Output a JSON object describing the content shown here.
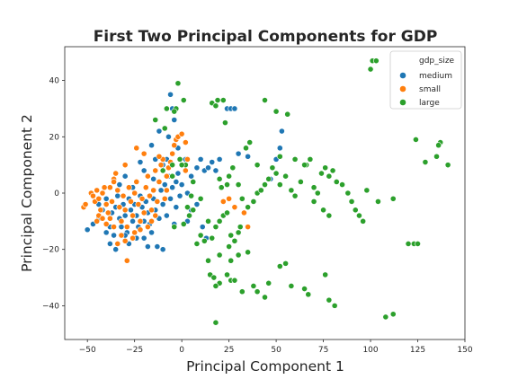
{
  "chart_data": {
    "type": "scatter",
    "title": "First Two Principal Components for GDP",
    "xlabel": "Principal Component 1",
    "ylabel": "Principal Component 2",
    "xlim": [
      -62,
      150
    ],
    "ylim": [
      -52,
      52
    ],
    "xticks": [
      -50,
      -25,
      0,
      25,
      50,
      75,
      100,
      125,
      150
    ],
    "yticks": [
      -40,
      -20,
      0,
      20,
      40
    ],
    "grid": false,
    "legend": {
      "title": "gdp_size",
      "placement": "top-right"
    },
    "series": [
      {
        "name": "medium",
        "color": "#1f77b4",
        "points": [
          [
            -50,
            -13
          ],
          [
            -47,
            -11
          ],
          [
            -44,
            -9
          ],
          [
            -42,
            -6
          ],
          [
            -40,
            -2
          ],
          [
            -38,
            -12
          ],
          [
            -37,
            -7
          ],
          [
            -36,
            -15
          ],
          [
            -35,
            -5
          ],
          [
            -34,
            -1
          ],
          [
            -33,
            -9
          ],
          [
            -32,
            -12
          ],
          [
            -31,
            -4
          ],
          [
            -30,
            -8
          ],
          [
            -29,
            -14
          ],
          [
            -28,
            -2
          ],
          [
            -27,
            -6
          ],
          [
            -26,
            -10
          ],
          [
            -25,
            -4
          ],
          [
            -24,
            -8
          ],
          [
            -23,
            -12
          ],
          [
            -22,
            -1
          ],
          [
            -21,
            -5
          ],
          [
            -20,
            -10
          ],
          [
            -20,
            -16
          ],
          [
            -19,
            -3
          ],
          [
            -18,
            -7
          ],
          [
            -17,
            -11
          ],
          [
            -16,
            -14
          ],
          [
            -15,
            -2
          ],
          [
            -14,
            -6
          ],
          [
            -13,
            -19
          ],
          [
            -12,
            -9
          ],
          [
            -11,
            1
          ],
          [
            -10,
            -4
          ],
          [
            -10,
            -20
          ],
          [
            -9,
            3
          ],
          [
            -8,
            -8
          ],
          [
            -7,
            6
          ],
          [
            -6,
            -2
          ],
          [
            -5,
            2
          ],
          [
            -4,
            -11
          ],
          [
            -3,
            4
          ],
          [
            -2,
            7
          ],
          [
            -1,
            -1
          ],
          [
            0,
            3
          ],
          [
            -6,
            35
          ],
          [
            -5,
            30
          ],
          [
            -4,
            26
          ],
          [
            -7,
            20
          ],
          [
            -2,
            16
          ],
          [
            -12,
            22
          ],
          [
            -16,
            17
          ],
          [
            -10,
            10
          ],
          [
            -8,
            12
          ],
          [
            -14,
            12
          ],
          [
            -20,
            8
          ],
          [
            -30,
            6
          ],
          [
            -26,
            2
          ],
          [
            -24,
            -16
          ],
          [
            -18,
            -19
          ],
          [
            -28,
            -18
          ],
          [
            -40,
            -14
          ],
          [
            -44,
            -4
          ],
          [
            -33,
            3
          ],
          [
            -35,
            -20
          ],
          [
            3,
            0
          ],
          [
            5,
            6
          ],
          [
            6,
            4
          ],
          [
            8,
            9
          ],
          [
            10,
            12
          ],
          [
            12,
            8
          ],
          [
            14,
            9
          ],
          [
            16,
            11
          ],
          [
            18,
            8
          ],
          [
            20,
            12
          ],
          [
            3,
            -10
          ],
          [
            5,
            -6
          ],
          [
            8,
            -4
          ],
          [
            11,
            -12
          ],
          [
            13,
            -16
          ],
          [
            24,
            30
          ],
          [
            26,
            30
          ],
          [
            28,
            30
          ],
          [
            30,
            14
          ],
          [
            35,
            13
          ],
          [
            40,
            10
          ],
          [
            47,
            5
          ],
          [
            50,
            12
          ],
          [
            52,
            16
          ],
          [
            53,
            22
          ],
          [
            2,
            12
          ],
          [
            -22,
            11
          ],
          [
            -15,
            5
          ],
          [
            -3,
            -5
          ],
          [
            -38,
            -18
          ],
          [
            -30,
            -15
          ]
        ]
      },
      {
        "name": "small",
        "color": "#ff7f0e",
        "points": [
          [
            -52,
            -5
          ],
          [
            -51,
            -4
          ],
          [
            -48,
            0
          ],
          [
            -47,
            -1
          ],
          [
            -46,
            -3
          ],
          [
            -45,
            1
          ],
          [
            -44,
            -2
          ],
          [
            -43,
            -6
          ],
          [
            -42,
            0
          ],
          [
            -41,
            2
          ],
          [
            -40,
            -4
          ],
          [
            -39,
            -7
          ],
          [
            -38,
            -9
          ],
          [
            -37,
            -3
          ],
          [
            -36,
            5
          ],
          [
            -35,
            7
          ],
          [
            -34,
            1
          ],
          [
            -33,
            -5
          ],
          [
            -32,
            -10
          ],
          [
            -31,
            -1
          ],
          [
            -30,
            -6
          ],
          [
            -29,
            -12
          ],
          [
            -28,
            2
          ],
          [
            -27,
            -3
          ],
          [
            -26,
            -8
          ],
          [
            -25,
            0
          ],
          [
            -24,
            4
          ],
          [
            -23,
            -4
          ],
          [
            -22,
            -13
          ],
          [
            -21,
            -2
          ],
          [
            -20,
            -7
          ],
          [
            -19,
            2
          ],
          [
            -18,
            6
          ],
          [
            -17,
            -1
          ],
          [
            -16,
            -6
          ],
          [
            -15,
            1
          ],
          [
            -14,
            8
          ],
          [
            -13,
            -3
          ],
          [
            -12,
            4
          ],
          [
            -11,
            10
          ],
          [
            -10,
            12
          ],
          [
            -9,
            -2
          ],
          [
            -8,
            6
          ],
          [
            -7,
            9
          ],
          [
            -6,
            11
          ],
          [
            -5,
            14
          ],
          [
            -4,
            17
          ],
          [
            -3,
            19
          ],
          [
            -2,
            20
          ],
          [
            0,
            21
          ],
          [
            2,
            18
          ],
          [
            3,
            12
          ],
          [
            -25,
            -14
          ],
          [
            -30,
            -17
          ],
          [
            -34,
            -18
          ],
          [
            -32,
            -15
          ],
          [
            -29,
            -24
          ],
          [
            -44,
            -8
          ],
          [
            -40,
            -11
          ],
          [
            -36,
            -12
          ],
          [
            -42,
            -9
          ],
          [
            -26,
            -16
          ],
          [
            -22,
            -10
          ],
          [
            -18,
            -12
          ],
          [
            -14,
            -8
          ],
          [
            -20,
            14
          ],
          [
            -24,
            16
          ],
          [
            -12,
            13
          ],
          [
            -30,
            10
          ],
          [
            -36,
            4
          ],
          [
            -38,
            2
          ],
          [
            -45,
            -10
          ],
          [
            22,
            -3
          ],
          [
            25,
            -2
          ],
          [
            28,
            -5
          ],
          [
            33,
            -7
          ],
          [
            35,
            -12
          ],
          [
            2,
            8
          ],
          [
            -8,
            1
          ],
          [
            -16,
            -10
          ]
        ]
      },
      {
        "name": "large",
        "color": "#2ca02c",
        "points": [
          [
            -2,
            39
          ],
          [
            -3,
            30
          ],
          [
            -4,
            29
          ],
          [
            -8,
            30
          ],
          [
            -9,
            23
          ],
          [
            -14,
            26
          ],
          [
            1,
            33
          ],
          [
            -1,
            12
          ],
          [
            -5,
            10
          ],
          [
            -10,
            8
          ],
          [
            2,
            10
          ],
          [
            0,
            10
          ],
          [
            5,
            -1
          ],
          [
            6,
            -6
          ],
          [
            4,
            -8
          ],
          [
            -4,
            -12
          ],
          [
            1,
            -11
          ],
          [
            10,
            -15
          ],
          [
            12,
            -17
          ],
          [
            16,
            -16
          ],
          [
            14,
            -10
          ],
          [
            18,
            -12
          ],
          [
            20,
            -10
          ],
          [
            22,
            -8
          ],
          [
            24,
            -7
          ],
          [
            26,
            -15
          ],
          [
            28,
            -17
          ],
          [
            25,
            -19
          ],
          [
            31,
            -12
          ],
          [
            30,
            -14
          ],
          [
            16,
            32
          ],
          [
            18,
            31
          ],
          [
            19,
            33
          ],
          [
            22,
            33
          ],
          [
            23,
            25
          ],
          [
            20,
            5
          ],
          [
            21,
            2
          ],
          [
            24,
            3
          ],
          [
            25,
            6
          ],
          [
            27,
            9
          ],
          [
            30,
            3
          ],
          [
            32,
            -2
          ],
          [
            35,
            -5
          ],
          [
            38,
            -3
          ],
          [
            40,
            0
          ],
          [
            42,
            1
          ],
          [
            44,
            3
          ],
          [
            46,
            5
          ],
          [
            48,
            9
          ],
          [
            50,
            7
          ],
          [
            52,
            3
          ],
          [
            55,
            6
          ],
          [
            58,
            1
          ],
          [
            60,
            -1
          ],
          [
            63,
            4
          ],
          [
            66,
            10
          ],
          [
            68,
            12
          ],
          [
            70,
            2
          ],
          [
            72,
            0
          ],
          [
            74,
            7
          ],
          [
            76,
            9
          ],
          [
            78,
            6
          ],
          [
            80,
            8
          ],
          [
            82,
            4
          ],
          [
            85,
            3
          ],
          [
            88,
            0
          ],
          [
            90,
            -3
          ],
          [
            92,
            -6
          ],
          [
            94,
            -8
          ],
          [
            96,
            -10
          ],
          [
            34,
            16
          ],
          [
            36,
            18
          ],
          [
            40,
            10
          ],
          [
            44,
            33
          ],
          [
            50,
            29
          ],
          [
            56,
            28
          ],
          [
            52,
            13
          ],
          [
            60,
            12
          ],
          [
            65,
            10
          ],
          [
            70,
            -3
          ],
          [
            75,
            -6
          ],
          [
            78,
            -8
          ],
          [
            15,
            -29
          ],
          [
            17,
            -30
          ],
          [
            20,
            -32
          ],
          [
            18,
            -33
          ],
          [
            24,
            -29
          ],
          [
            26,
            -31
          ],
          [
            28,
            -31
          ],
          [
            32,
            -35
          ],
          [
            38,
            -33
          ],
          [
            40,
            -35
          ],
          [
            44,
            -37
          ],
          [
            46,
            -32
          ],
          [
            52,
            -26
          ],
          [
            55,
            -25
          ],
          [
            58,
            -33
          ],
          [
            65,
            -34
          ],
          [
            67,
            -36
          ],
          [
            76,
            -29
          ],
          [
            78,
            -38
          ],
          [
            81,
            -40
          ],
          [
            100,
            44
          ],
          [
            101,
            47
          ],
          [
            103,
            47
          ],
          [
            98,
            1
          ],
          [
            104,
            -3
          ],
          [
            108,
            -44
          ],
          [
            112,
            -43
          ],
          [
            112,
            -2
          ],
          [
            120,
            -18
          ],
          [
            123,
            -18
          ],
          [
            125,
            -18
          ],
          [
            124,
            19
          ],
          [
            129,
            11
          ],
          [
            135,
            13
          ],
          [
            137,
            18
          ],
          [
            136,
            17
          ],
          [
            141,
            10
          ],
          [
            18,
            -46
          ],
          [
            26,
            -24
          ],
          [
            35,
            -21
          ],
          [
            30,
            -22
          ],
          [
            20,
            -22
          ],
          [
            14,
            -24
          ],
          [
            8,
            -18
          ],
          [
            -5,
            6
          ],
          [
            3,
            -5
          ],
          [
            10,
            -2
          ],
          [
            6,
            4
          ]
        ]
      }
    ]
  }
}
